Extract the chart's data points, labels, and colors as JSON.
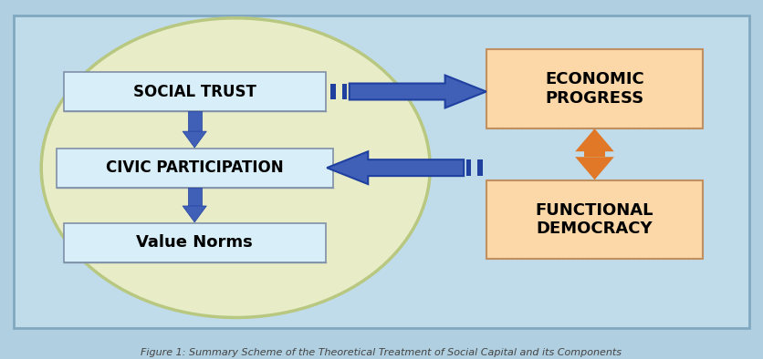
{
  "bg_color": "#b0cfe0",
  "inner_bg": "#c0dcea",
  "ellipse_fill": "#e8edc8",
  "ellipse_edge": "#b8c880",
  "box_left_fill_top": "#d8eef8",
  "box_left_fill_bot": "#e8f4fc",
  "box_left_edge": "#8090a8",
  "box_right_fill": "#fcd8a8",
  "box_right_edge": "#c09060",
  "arrow_blue": "#4060b8",
  "arrow_blue_edge": "#2040a0",
  "arrow_orange": "#e07828",
  "social_trust_label": "SOCIAL TRUST",
  "civic_participation_label": "CIVIC PARTICIPATION",
  "value_norms_label": "Value Norms",
  "economic_progress_label": "ECONOMIC\nPROGRESS",
  "functional_democracy_label": "FUNCTIONAL\nDEMOCRACY",
  "title": "Figure 1: Summary Scheme of the Theoretical Treatment of Social Capital and its Components",
  "xlim": [
    0,
    10
  ],
  "ylim": [
    0,
    6
  ],
  "figsize": [
    8.36,
    3.94
  ],
  "dpi": 100
}
